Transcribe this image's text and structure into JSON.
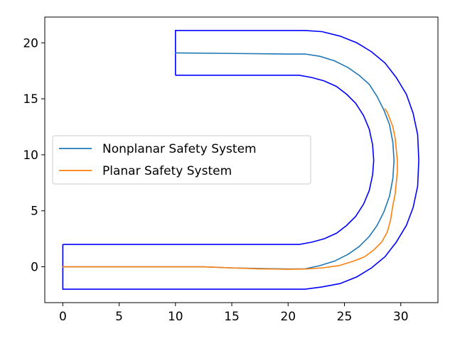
{
  "chart_data": {
    "type": "line",
    "title": "",
    "xlabel": "",
    "ylabel": "",
    "xlim": [
      -1.6,
      33.3
    ],
    "ylim": [
      -3.2,
      22.3
    ],
    "xticks": [
      0,
      5,
      10,
      15,
      20,
      25,
      30
    ],
    "yticks": [
      0,
      5,
      10,
      15,
      20
    ],
    "grid": false,
    "legend_position": "center-left",
    "boundary": {
      "color": "#0000ff",
      "outer": [
        [
          0,
          2
        ],
        [
          0,
          -2
        ],
        [
          20,
          -2
        ],
        [
          21.5,
          -2.0
        ],
        [
          23,
          -1.8
        ],
        [
          24.6,
          -1.5
        ],
        [
          26.1,
          -0.9
        ],
        [
          27.4,
          -0.1
        ],
        [
          28.6,
          0.9
        ],
        [
          29.6,
          2.2
        ],
        [
          30.5,
          3.7
        ],
        [
          31.1,
          5.3
        ],
        [
          31.5,
          7.2
        ],
        [
          31.6,
          9.5
        ],
        [
          31.5,
          11.8
        ],
        [
          31.1,
          13.7
        ],
        [
          30.5,
          15.4
        ],
        [
          29.6,
          16.9
        ],
        [
          28.6,
          18.2
        ],
        [
          27.4,
          19.2
        ],
        [
          26.1,
          20.0
        ],
        [
          24.6,
          20.6
        ],
        [
          23,
          21.0
        ],
        [
          21.5,
          21.1
        ],
        [
          20,
          21.1
        ],
        [
          10,
          21.1
        ],
        [
          10,
          17.1
        ]
      ],
      "inner": [
        [
          0,
          2
        ],
        [
          20,
          2
        ],
        [
          21,
          2.0
        ],
        [
          22.1,
          2.2
        ],
        [
          23.2,
          2.5
        ],
        [
          24.3,
          3.0
        ],
        [
          25.2,
          3.7
        ],
        [
          26,
          4.5
        ],
        [
          26.7,
          5.6
        ],
        [
          27.2,
          6.8
        ],
        [
          27.5,
          8.2
        ],
        [
          27.6,
          9.5
        ],
        [
          27.5,
          10.9
        ],
        [
          27.2,
          12.3
        ],
        [
          26.7,
          13.5
        ],
        [
          26.0,
          14.6
        ],
        [
          25.2,
          15.4
        ],
        [
          24.3,
          16.1
        ],
        [
          23.2,
          16.6
        ],
        [
          22.1,
          16.9
        ],
        [
          21,
          17.1
        ],
        [
          20,
          17.1
        ],
        [
          10,
          17.1
        ]
      ]
    },
    "series": [
      {
        "name": "Nonplanar Safety System",
        "color": "#1f77b4",
        "points": [
          [
            0,
            0
          ],
          [
            5,
            0
          ],
          [
            10,
            0
          ],
          [
            12.5,
            0
          ],
          [
            15,
            -0.1
          ],
          [
            17.5,
            -0.15
          ],
          [
            20,
            -0.2
          ],
          [
            21.5,
            -0.18
          ],
          [
            22.8,
            0.1
          ],
          [
            24.1,
            0.5
          ],
          [
            25.3,
            1.1
          ],
          [
            26.3,
            1.8
          ],
          [
            27.2,
            2.7
          ],
          [
            27.9,
            3.7
          ],
          [
            28.5,
            4.9
          ],
          [
            29.0,
            6.3
          ],
          [
            29.3,
            7.9
          ],
          [
            29.4,
            9.5
          ],
          [
            29.3,
            11.1
          ],
          [
            29.0,
            12.7
          ],
          [
            28.5,
            14.0
          ],
          [
            27.9,
            15.2
          ],
          [
            27.2,
            16.3
          ],
          [
            26.3,
            17.1
          ],
          [
            25.3,
            17.8
          ],
          [
            24.1,
            18.4
          ],
          [
            22.8,
            18.8
          ],
          [
            21.5,
            19.0
          ],
          [
            20,
            19.0
          ],
          [
            15,
            19.05
          ],
          [
            10,
            19.1
          ]
        ]
      },
      {
        "name": "Planar Safety System",
        "color": "#ff7f0e",
        "points": [
          [
            0,
            0
          ],
          [
            5,
            0
          ],
          [
            10,
            0
          ],
          [
            12.5,
            0
          ],
          [
            15,
            -0.1
          ],
          [
            17.5,
            -0.18
          ],
          [
            20,
            -0.22
          ],
          [
            21.5,
            -0.2
          ],
          [
            23,
            -0.1
          ],
          [
            24.5,
            0.1
          ],
          [
            25.8,
            0.5
          ],
          [
            26.8,
            0.9
          ],
          [
            27.6,
            1.5
          ],
          [
            28.3,
            2.2
          ],
          [
            28.8,
            3.1
          ],
          [
            29.1,
            4.2
          ],
          [
            29.3,
            5.5
          ],
          [
            29.5,
            6.5
          ],
          [
            29.6,
            7.5
          ],
          [
            29.7,
            8.5
          ],
          [
            29.7,
            9.5
          ],
          [
            29.6,
            10.5
          ],
          [
            29.5,
            11.5
          ],
          [
            29.3,
            12.5
          ],
          [
            29.0,
            13.3
          ],
          [
            28.8,
            13.8
          ],
          [
            28.6,
            14.1
          ]
        ]
      }
    ]
  }
}
